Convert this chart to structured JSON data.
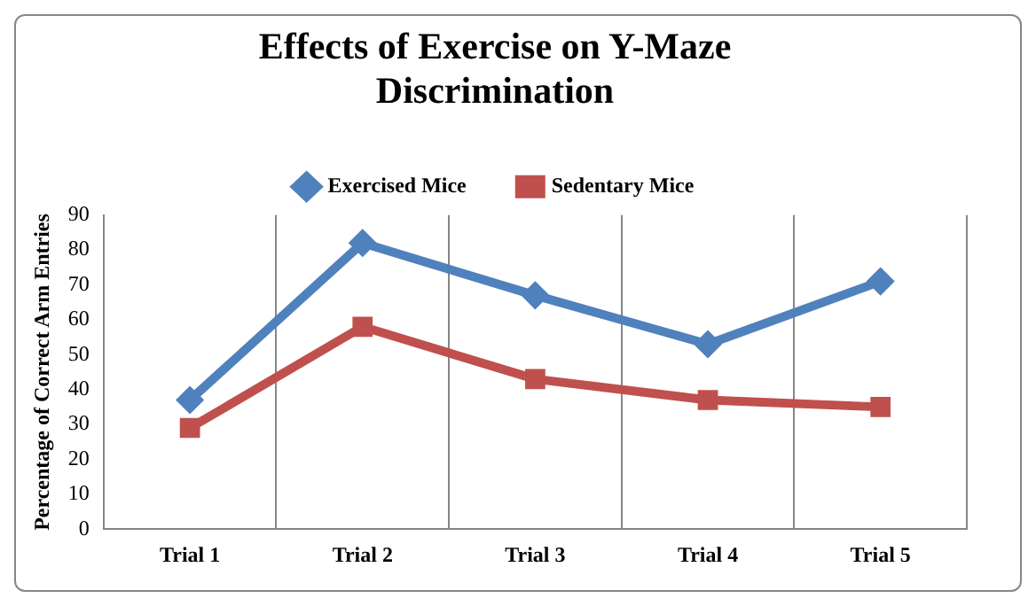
{
  "chart_data": {
    "type": "line",
    "title": "Effects of Exercise on Y-Maze Discrimination",
    "ylabel": "Percentage of Correct Arm Entries",
    "categories": [
      "Trial 1",
      "Trial 2",
      "Trial 3",
      "Trial 4",
      "Trial 5"
    ],
    "series": [
      {
        "name": "Exercised Mice",
        "color": "#4f81bd",
        "marker": "diamond",
        "values": [
          37,
          82,
          67,
          53,
          71
        ]
      },
      {
        "name": "Sedentary Mice",
        "color": "#c0504d",
        "marker": "square",
        "values": [
          29,
          58,
          43,
          37,
          35
        ]
      }
    ],
    "ylim": [
      0,
      90
    ],
    "yticks": [
      0,
      10,
      20,
      30,
      40,
      50,
      60,
      70,
      80,
      90
    ],
    "grid": "x",
    "legend": "top",
    "line_style": "solid"
  }
}
